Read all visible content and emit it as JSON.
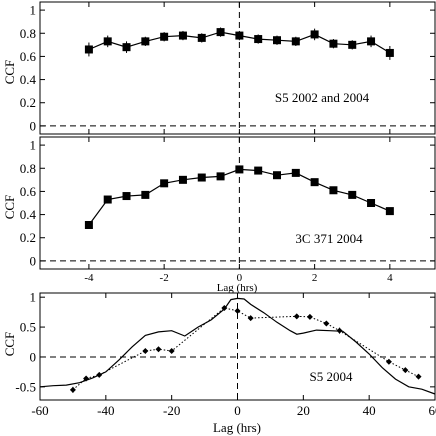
{
  "chart_data": [
    {
      "type": "line",
      "ylabel": "CCF",
      "annotation": "S5 2002 and 2004",
      "xlim": [
        -5.3,
        5.2
      ],
      "ylim": [
        -0.07,
        1.07
      ],
      "xticks": [
        -4,
        -2,
        0,
        2,
        4
      ],
      "xtick_labels": [
        "",
        "",
        "",
        "",
        ""
      ],
      "yticks": [
        0,
        0.2,
        0.4,
        0.6,
        0.8,
        1
      ],
      "ytick_labels": [
        "0",
        "0.2",
        "0.4",
        "0.6",
        "0.8",
        "1"
      ],
      "series": [
        {
          "style": "square-markers-solid-line-errorbars",
          "x": [
            -4,
            -3.5,
            -3,
            -2.5,
            -2,
            -1.5,
            -1,
            -0.5,
            0,
            0.5,
            1,
            1.5,
            2,
            2.5,
            3,
            3.5,
            4
          ],
          "y": [
            0.66,
            0.73,
            0.68,
            0.73,
            0.77,
            0.78,
            0.76,
            0.81,
            0.78,
            0.75,
            0.74,
            0.73,
            0.79,
            0.71,
            0.7,
            0.73,
            0.63
          ],
          "yerr": [
            0.06,
            0.05,
            0.05,
            0.04,
            0.04,
            0.04,
            0.04,
            0.04,
            0.04,
            0.04,
            0.04,
            0.04,
            0.05,
            0.04,
            0.04,
            0.05,
            0.06
          ]
        }
      ],
      "reference_lines": {
        "y": 0,
        "x": 0,
        "style": "dashed"
      }
    },
    {
      "type": "line",
      "ylabel": "CCF",
      "xlabel": "Lag (hrs)",
      "annotation": "3C 371 2004",
      "xlim": [
        -5.3,
        5.2
      ],
      "ylim": [
        -0.07,
        1.07
      ],
      "xticks": [
        -4,
        -2,
        0,
        2,
        4
      ],
      "xtick_labels": [
        "-4",
        "-2",
        "0",
        "2",
        "4"
      ],
      "yticks": [
        0,
        0.2,
        0.4,
        0.6,
        0.8,
        1
      ],
      "ytick_labels": [
        "0",
        "0.2",
        "0.4",
        "0.6",
        "0.8",
        "1"
      ],
      "series": [
        {
          "style": "square-markers-solid-line-errorbars",
          "x": [
            -4,
            -3.5,
            -3,
            -2.5,
            -2,
            -1.5,
            -1,
            -0.5,
            0,
            0.5,
            1,
            1.5,
            2,
            2.5,
            3,
            3.5,
            4
          ],
          "y": [
            0.31,
            0.53,
            0.56,
            0.57,
            0.67,
            0.7,
            0.72,
            0.73,
            0.79,
            0.78,
            0.74,
            0.76,
            0.68,
            0.61,
            0.57,
            0.5,
            0.43
          ],
          "yerr": [
            0.03,
            0.03,
            0.03,
            0.03,
            0.03,
            0.03,
            0.03,
            0.03,
            0.03,
            0.03,
            0.03,
            0.03,
            0.03,
            0.03,
            0.03,
            0.03,
            0.03
          ]
        }
      ],
      "reference_lines": {
        "y": 0,
        "x": 0,
        "style": "dashed"
      }
    },
    {
      "type": "line",
      "ylabel": "CCF",
      "xlabel": "Lag (hrs)",
      "annotation": "S5 2004",
      "xlim": [
        -60,
        60
      ],
      "ylim": [
        -0.72,
        1.07
      ],
      "xticks": [
        -60,
        -40,
        -20,
        0,
        20,
        40,
        60
      ],
      "xtick_labels": [
        "-60",
        "-40",
        "-20",
        "0",
        "20",
        "40",
        "60"
      ],
      "yticks": [
        -0.5,
        0,
        0.5,
        1
      ],
      "ytick_labels": [
        "-0.5",
        "0",
        "0.5",
        "1"
      ],
      "series": [
        {
          "style": "solid-line",
          "x": [
            -60,
            -56,
            -52,
            -48,
            -44,
            -40,
            -36,
            -32,
            -28,
            -24,
            -20,
            -16,
            -12,
            -8,
            -4,
            -2,
            0,
            2,
            4,
            8,
            12,
            16,
            18,
            20,
            24,
            28,
            32,
            36,
            40,
            44,
            48,
            52,
            56,
            60
          ],
          "y": [
            -0.5,
            -0.48,
            -0.47,
            -0.43,
            -0.35,
            -0.25,
            -0.05,
            0.17,
            0.36,
            0.42,
            0.44,
            0.35,
            0.5,
            0.62,
            0.8,
            0.96,
            0.98,
            0.97,
            0.88,
            0.74,
            0.58,
            0.44,
            0.38,
            0.4,
            0.45,
            0.44,
            0.43,
            0.25,
            0.05,
            -0.18,
            -0.37,
            -0.5,
            -0.54,
            -0.62
          ]
        },
        {
          "style": "dotted-line-diamond-markers-errorbars",
          "x": [
            -50,
            -46,
            -42,
            -28,
            -24,
            -20,
            -4,
            0,
            4,
            18,
            22,
            27,
            31,
            46,
            51,
            55
          ],
          "y": [
            -0.55,
            -0.36,
            -0.3,
            0.1,
            0.13,
            0.1,
            0.82,
            0.77,
            0.65,
            0.68,
            0.67,
            0.56,
            0.44,
            -0.08,
            -0.22,
            -0.33
          ],
          "yerr": [
            0.05,
            0.04,
            0.04,
            0.03,
            0.03,
            0.03,
            0.03,
            0.03,
            0.03,
            0.04,
            0.04,
            0.04,
            0.05,
            0.04,
            0.04,
            0.04
          ]
        }
      ],
      "reference_lines": {
        "y": 0,
        "x": 0,
        "style": "dashed"
      }
    }
  ]
}
